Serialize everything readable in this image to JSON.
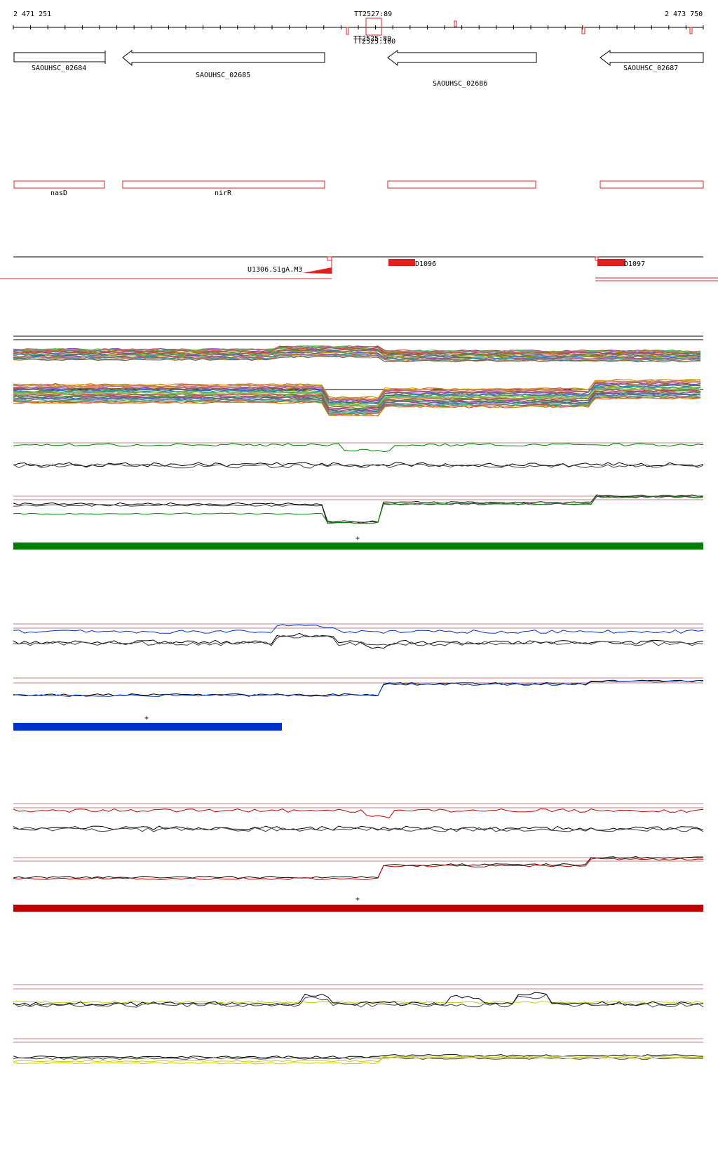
{
  "ruler": {
    "start_label": "2 471 251",
    "end_label": "2 473 750",
    "center_label": "TT2527:89",
    "overlap_label_a": "TT2525:89",
    "overlap_label_b": "TT2525:100"
  },
  "genes_top": [
    {
      "label": "SAOUHSC_02684",
      "direction": "right"
    },
    {
      "label": "SAOUHSC_02685",
      "direction": "left"
    },
    {
      "label": "SAOUHSC_02686",
      "direction": "left"
    },
    {
      "label": "SAOUHSC_02687",
      "direction": "left"
    }
  ],
  "genes_red": [
    {
      "label": "nasD"
    },
    {
      "label": "nirR"
    },
    {
      "label": ""
    },
    {
      "label": ""
    }
  ],
  "features": {
    "promoter_label": "U1306.SigA.M3",
    "d1096_label": "D1096",
    "d1097_label": "D1097"
  },
  "segment_markers": {
    "green": "+",
    "blue": "+",
    "red": "+"
  },
  "colors": {
    "gene_outline": "#000000",
    "gene_red": "#e02020",
    "green": "#008000",
    "blue": "#0033cc",
    "red": "#c00000",
    "yellow": "#cccc00",
    "ref_line": "#c08080"
  }
}
